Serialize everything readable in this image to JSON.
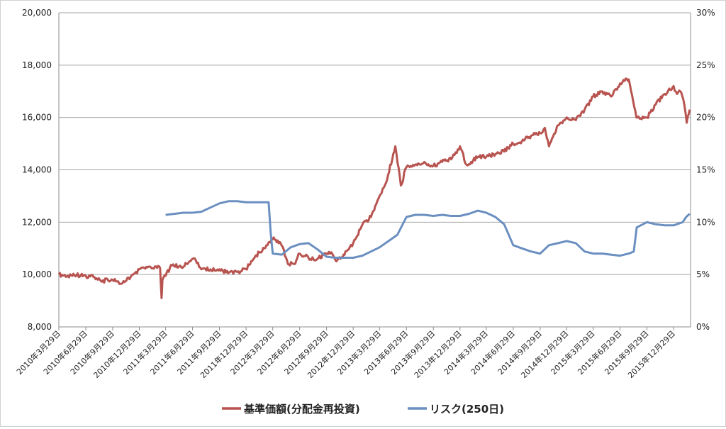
{
  "chart_data": {
    "type": "line",
    "title": "",
    "x_tick_labels": [
      "2010年3月29日",
      "2010年6月29日",
      "2010年9月29日",
      "2010年12月29日",
      "2011年3月29日",
      "2011年6月29日",
      "2011年9月29日",
      "2011年12月29日",
      "2012年3月29日",
      "2012年6月29日",
      "2012年9月29日",
      "2012年12月29日",
      "2013年3月29日",
      "2013年6月29日",
      "2013年9月29日",
      "2013年12月29日",
      "2014年3月29日",
      "2014年6月29日",
      "2014年9月29日",
      "2014年12月29日",
      "2015年3月29日",
      "2015年6月29日",
      "2015年9月29日",
      "2015年12月29日"
    ],
    "y_left": {
      "ylim": [
        8000,
        20000
      ],
      "ticks": [
        "8,000",
        "10,000",
        "12,000",
        "14,000",
        "16,000",
        "18,000",
        "20,000"
      ]
    },
    "y_right": {
      "ylim": [
        0,
        30
      ],
      "ticks": [
        "0%",
        "5%",
        "10%",
        "15%",
        "20%",
        "25%",
        "30%"
      ]
    },
    "grid": true,
    "legend_position": "bottom",
    "series": [
      {
        "name": "基準価額(分配金再投資)",
        "axis": "left",
        "color": "#b85450",
        "x": [
          "2010-03-29",
          "2010-04-29",
          "2010-05-29",
          "2010-06-29",
          "2010-07-29",
          "2010-08-20",
          "2010-09-29",
          "2010-10-29",
          "2010-11-29",
          "2010-12-29",
          "2011-01-29",
          "2011-02-28",
          "2011-03-10",
          "2011-03-15",
          "2011-03-18",
          "2011-04-20",
          "2011-05-29",
          "2011-06-29",
          "2011-07-10",
          "2011-07-29",
          "2011-08-29",
          "2011-09-29",
          "2011-10-29",
          "2011-11-29",
          "2011-12-29",
          "2012-01-29",
          "2012-02-29",
          "2012-03-29",
          "2012-04-15",
          "2012-04-29",
          "2012-05-20",
          "2012-06-10",
          "2012-06-29",
          "2012-07-29",
          "2012-08-29",
          "2012-09-29",
          "2012-10-15",
          "2012-10-29",
          "2012-11-29",
          "2012-12-29",
          "2013-01-29",
          "2013-02-28",
          "2013-03-29",
          "2013-04-20",
          "2013-05-22",
          "2013-06-10",
          "2013-06-29",
          "2013-07-29",
          "2013-08-29",
          "2013-09-29",
          "2013-10-29",
          "2013-11-29",
          "2013-12-29",
          "2014-01-20",
          "2014-02-05",
          "2014-02-29",
          "2014-03-29",
          "2014-04-29",
          "2014-05-29",
          "2014-06-29",
          "2014-07-29",
          "2014-08-29",
          "2014-09-29",
          "2014-10-15",
          "2014-10-29",
          "2014-11-29",
          "2014-12-29",
          "2015-01-29",
          "2015-02-28",
          "2015-03-29",
          "2015-04-29",
          "2015-05-29",
          "2015-06-29",
          "2015-07-15",
          "2015-07-29",
          "2015-08-24",
          "2015-09-29",
          "2015-10-29",
          "2015-11-29",
          "2015-12-29",
          "2016-01-10",
          "2016-01-21",
          "2016-01-31",
          "2016-02-12",
          "2016-02-22"
        ],
        "values": [
          10000,
          9950,
          9980,
          9950,
          9900,
          9750,
          9800,
          9650,
          9900,
          10200,
          10300,
          10250,
          10250,
          9100,
          9800,
          10350,
          10300,
          10600,
          10550,
          10200,
          10200,
          10200,
          10050,
          10100,
          10200,
          10700,
          11000,
          11350,
          11300,
          11100,
          10400,
          10400,
          10800,
          10650,
          10600,
          10800,
          10850,
          10550,
          10750,
          11200,
          11900,
          12200,
          13000,
          13500,
          14900,
          13400,
          14100,
          14200,
          14300,
          14150,
          14300,
          14400,
          14900,
          14200,
          14300,
          14500,
          14500,
          14600,
          14700,
          15000,
          15100,
          15300,
          15400,
          15600,
          14900,
          15700,
          16000,
          15900,
          16300,
          16800,
          17000,
          16800,
          17300,
          17400,
          17450,
          16000,
          16000,
          16500,
          16900,
          17200,
          16900,
          17000,
          16700,
          15800,
          16300
        ]
      },
      {
        "name": "リスク(250日)",
        "axis": "right",
        "color": "#6a8fc0",
        "x": [
          "2011-03-29",
          "2011-04-29",
          "2011-05-29",
          "2011-06-29",
          "2011-07-29",
          "2011-08-29",
          "2011-09-29",
          "2011-10-29",
          "2011-11-29",
          "2011-12-29",
          "2012-01-29",
          "2012-02-29",
          "2012-03-15",
          "2012-03-22",
          "2012-03-29",
          "2012-04-29",
          "2012-05-29",
          "2012-06-29",
          "2012-07-29",
          "2012-08-29",
          "2012-09-29",
          "2012-10-29",
          "2012-11-29",
          "2012-12-29",
          "2013-01-29",
          "2013-02-28",
          "2013-03-29",
          "2013-04-29",
          "2013-05-29",
          "2013-06-29",
          "2013-07-29",
          "2013-08-29",
          "2013-09-29",
          "2013-10-29",
          "2013-11-29",
          "2013-12-29",
          "2014-01-29",
          "2014-02-28",
          "2014-03-29",
          "2014-04-29",
          "2014-05-29",
          "2014-06-29",
          "2014-07-29",
          "2014-08-29",
          "2014-09-29",
          "2014-10-29",
          "2014-11-29",
          "2014-12-29",
          "2015-01-29",
          "2015-02-28",
          "2015-03-29",
          "2015-04-29",
          "2015-05-29",
          "2015-06-29",
          "2015-07-29",
          "2015-08-15",
          "2015-08-25",
          "2015-09-29",
          "2015-10-29",
          "2015-11-29",
          "2015-12-29",
          "2016-01-29",
          "2016-02-10",
          "2016-02-22"
        ],
        "values": [
          10.7,
          10.8,
          10.9,
          10.9,
          11.0,
          11.4,
          11.8,
          12.0,
          12.0,
          11.9,
          11.9,
          11.9,
          11.9,
          9.0,
          7.0,
          6.9,
          7.6,
          7.9,
          8.0,
          7.4,
          6.7,
          6.6,
          6.6,
          6.6,
          6.8,
          7.2,
          7.6,
          8.2,
          8.8,
          10.5,
          10.7,
          10.7,
          10.6,
          10.7,
          10.6,
          10.6,
          10.8,
          11.1,
          10.9,
          10.5,
          9.8,
          7.8,
          7.5,
          7.2,
          7.0,
          7.8,
          8.0,
          8.2,
          8.0,
          7.2,
          7.0,
          7.0,
          6.9,
          6.8,
          7.0,
          7.2,
          9.5,
          10.0,
          9.8,
          9.7,
          9.7,
          10.0,
          10.5,
          10.8
        ]
      }
    ]
  }
}
